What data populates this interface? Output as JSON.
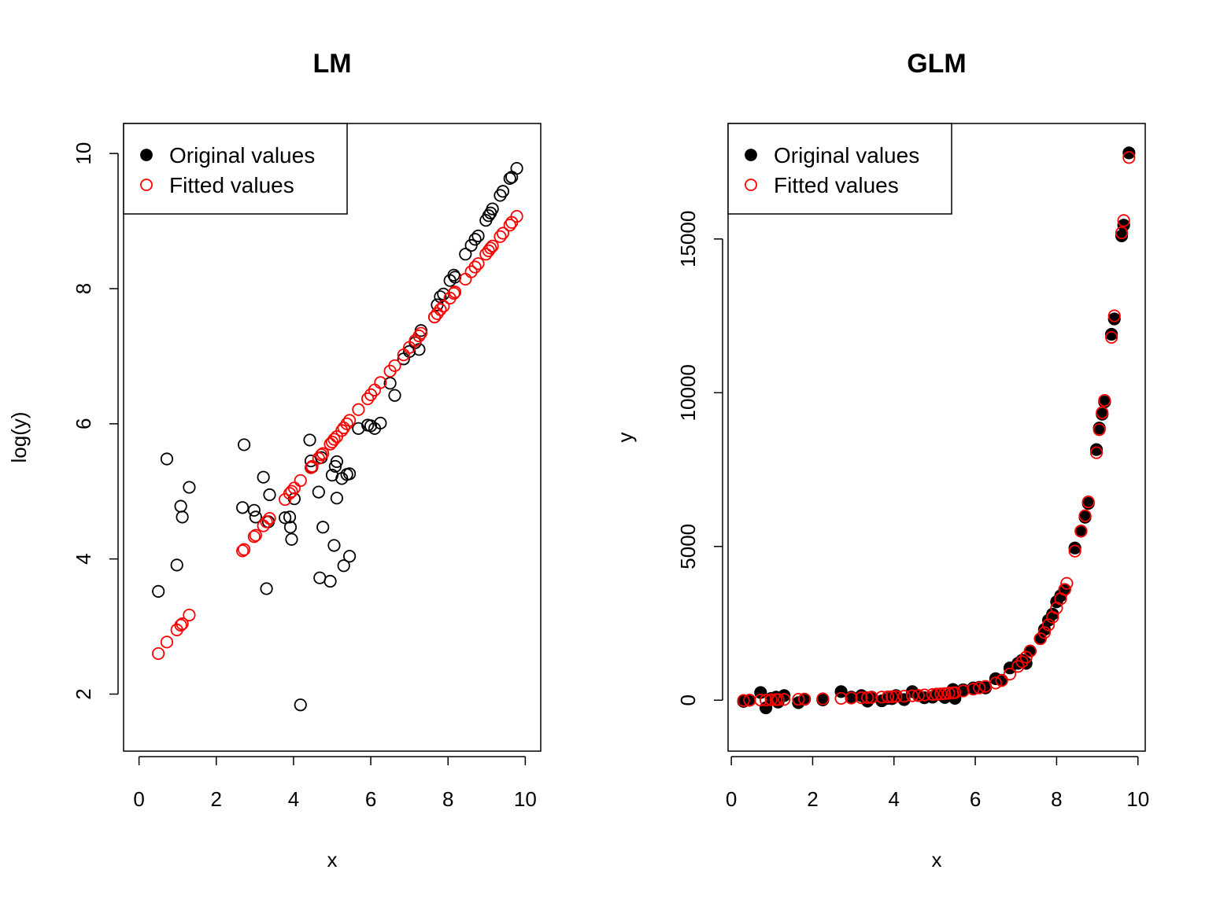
{
  "colors": {
    "original": "#000000",
    "fitted": "#ff0000"
  },
  "chart_data": [
    {
      "type": "scatter",
      "title": "LM",
      "xlabel": "x",
      "ylabel": "log(y)",
      "xlim": [
        0,
        10
      ],
      "ylim": [
        1.5,
        10.1
      ],
      "xticks": [
        0,
        2,
        4,
        6,
        8,
        10
      ],
      "yticks": [
        2,
        4,
        6,
        8,
        10
      ],
      "legend_position": "top-left",
      "series": [
        {
          "name": "Original values",
          "marker": "open-circle",
          "color": "#000000",
          "points": [
            [
              0.5,
              3.52
            ],
            [
              0.72,
              5.48
            ],
            [
              0.98,
              3.91
            ],
            [
              1.08,
              4.78
            ],
            [
              1.12,
              4.62
            ],
            [
              1.3,
              5.06
            ],
            [
              2.68,
              4.76
            ],
            [
              2.72,
              5.69
            ],
            [
              2.98,
              4.72
            ],
            [
              3.02,
              4.62
            ],
            [
              3.22,
              5.21
            ],
            [
              3.3,
              3.56
            ],
            [
              3.38,
              4.95
            ],
            [
              3.35,
              4.55
            ],
            [
              3.78,
              4.61
            ],
            [
              3.9,
              4.62
            ],
            [
              3.92,
              4.47
            ],
            [
              3.95,
              4.29
            ],
            [
              4.02,
              4.89
            ],
            [
              4.18,
              1.84
            ],
            [
              4.42,
              5.76
            ],
            [
              4.45,
              5.45
            ],
            [
              4.48,
              5.36
            ],
            [
              4.65,
              4.99
            ],
            [
              4.68,
              3.72
            ],
            [
              4.72,
              5.5
            ],
            [
              4.76,
              4.47
            ],
            [
              4.95,
              3.67
            ],
            [
              5.0,
              5.24
            ],
            [
              5.05,
              4.2
            ],
            [
              5.08,
              5.37
            ],
            [
              5.12,
              5.44
            ],
            [
              5.12,
              4.9
            ],
            [
              5.25,
              5.19
            ],
            [
              5.3,
              3.9
            ],
            [
              5.38,
              5.25
            ],
            [
              5.45,
              5.26
            ],
            [
              5.45,
              4.04
            ],
            [
              5.68,
              5.93
            ],
            [
              5.92,
              5.98
            ],
            [
              6.0,
              5.97
            ],
            [
              6.1,
              5.93
            ],
            [
              6.25,
              6.01
            ],
            [
              6.5,
              6.6
            ],
            [
              6.62,
              6.42
            ],
            [
              6.85,
              6.96
            ],
            [
              7.0,
              7.07
            ],
            [
              7.15,
              7.2
            ],
            [
              7.25,
              7.1
            ],
            [
              7.3,
              7.38
            ],
            [
              7.65,
              7.58
            ],
            [
              7.72,
              7.76
            ],
            [
              7.8,
              7.88
            ],
            [
              7.88,
              7.92
            ],
            [
              8.05,
              8.12
            ],
            [
              8.15,
              8.2
            ],
            [
              8.18,
              8.17
            ],
            [
              8.45,
              8.51
            ],
            [
              8.6,
              8.64
            ],
            [
              8.7,
              8.73
            ],
            [
              8.78,
              8.78
            ],
            [
              8.98,
              9.01
            ],
            [
              9.05,
              9.08
            ],
            [
              9.1,
              9.12
            ],
            [
              9.15,
              9.18
            ],
            [
              9.35,
              9.38
            ],
            [
              9.42,
              9.44
            ],
            [
              9.6,
              9.63
            ],
            [
              9.65,
              9.65
            ],
            [
              9.78,
              9.78
            ]
          ]
        },
        {
          "name": "Fitted values",
          "marker": "open-circle",
          "color": "#ff0000",
          "points": [
            [
              0.5,
              2.6
            ],
            [
              0.72,
              2.77
            ],
            [
              0.98,
              2.95
            ],
            [
              1.08,
              3.02
            ],
            [
              1.12,
              3.04
            ],
            [
              1.3,
              3.17
            ],
            [
              2.68,
              4.12
            ],
            [
              2.72,
              4.14
            ],
            [
              2.98,
              4.33
            ],
            [
              3.02,
              4.35
            ],
            [
              3.22,
              4.49
            ],
            [
              3.3,
              4.55
            ],
            [
              3.38,
              4.6
            ],
            [
              3.78,
              4.88
            ],
            [
              3.9,
              4.97
            ],
            [
              3.95,
              5.0
            ],
            [
              4.02,
              5.05
            ],
            [
              4.18,
              5.16
            ],
            [
              4.45,
              5.35
            ],
            [
              4.48,
              5.37
            ],
            [
              4.65,
              5.49
            ],
            [
              4.72,
              5.54
            ],
            [
              4.76,
              5.56
            ],
            [
              4.95,
              5.7
            ],
            [
              5.0,
              5.73
            ],
            [
              5.05,
              5.77
            ],
            [
              5.12,
              5.81
            ],
            [
              5.25,
              5.9
            ],
            [
              5.3,
              5.94
            ],
            [
              5.38,
              6.0
            ],
            [
              5.45,
              6.05
            ],
            [
              5.68,
              6.21
            ],
            [
              5.92,
              6.37
            ],
            [
              6.0,
              6.43
            ],
            [
              6.1,
              6.5
            ],
            [
              6.25,
              6.61
            ],
            [
              6.5,
              6.78
            ],
            [
              6.62,
              6.86
            ],
            [
              6.85,
              7.02
            ],
            [
              7.0,
              7.13
            ],
            [
              7.15,
              7.23
            ],
            [
              7.25,
              7.3
            ],
            [
              7.3,
              7.34
            ],
            [
              7.65,
              7.58
            ],
            [
              7.72,
              7.63
            ],
            [
              7.8,
              7.69
            ],
            [
              7.88,
              7.74
            ],
            [
              8.05,
              7.86
            ],
            [
              8.15,
              7.93
            ],
            [
              8.18,
              7.95
            ],
            [
              8.45,
              8.14
            ],
            [
              8.6,
              8.25
            ],
            [
              8.7,
              8.32
            ],
            [
              8.78,
              8.37
            ],
            [
              8.98,
              8.51
            ],
            [
              9.05,
              8.56
            ],
            [
              9.1,
              8.6
            ],
            [
              9.15,
              8.63
            ],
            [
              9.35,
              8.77
            ],
            [
              9.42,
              8.82
            ],
            [
              9.6,
              8.94
            ],
            [
              9.65,
              8.98
            ],
            [
              9.78,
              9.07
            ]
          ]
        }
      ]
    },
    {
      "type": "scatter",
      "title": "GLM",
      "xlabel": "x",
      "ylabel": "y",
      "xlim": [
        0.3,
        9.8
      ],
      "ylim": [
        -900,
        18000
      ],
      "xticks": [
        0,
        2,
        4,
        6,
        8,
        10
      ],
      "yticks": [
        0,
        5000,
        10000,
        15000
      ],
      "legend_position": "top-left",
      "series": [
        {
          "name": "Original values",
          "marker": "filled-circle",
          "color": "#000000",
          "points": [
            [
              0.3,
              -40
            ],
            [
              0.45,
              0
            ],
            [
              0.72,
              250
            ],
            [
              0.85,
              -250
            ],
            [
              0.98,
              60
            ],
            [
              1.1,
              100
            ],
            [
              1.15,
              -60
            ],
            [
              1.3,
              150
            ],
            [
              1.65,
              -80
            ],
            [
              1.8,
              30
            ],
            [
              2.25,
              10
            ],
            [
              2.7,
              280
            ],
            [
              2.95,
              100
            ],
            [
              3.2,
              150
            ],
            [
              3.35,
              -30
            ],
            [
              3.45,
              100
            ],
            [
              3.7,
              -20
            ],
            [
              3.85,
              60
            ],
            [
              3.95,
              50
            ],
            [
              4.05,
              150
            ],
            [
              4.25,
              20
            ],
            [
              4.45,
              280
            ],
            [
              4.6,
              150
            ],
            [
              4.75,
              80
            ],
            [
              4.95,
              100
            ],
            [
              5.05,
              200
            ],
            [
              5.15,
              180
            ],
            [
              5.25,
              90
            ],
            [
              5.35,
              160
            ],
            [
              5.45,
              350
            ],
            [
              5.5,
              60
            ],
            [
              5.7,
              340
            ],
            [
              5.95,
              400
            ],
            [
              6.1,
              420
            ],
            [
              6.25,
              400
            ],
            [
              6.5,
              700
            ],
            [
              6.65,
              650
            ],
            [
              6.85,
              1050
            ],
            [
              7.05,
              1200
            ],
            [
              7.15,
              1300
            ],
            [
              7.25,
              1200
            ],
            [
              7.35,
              1600
            ],
            [
              7.6,
              2000
            ],
            [
              7.7,
              2300
            ],
            [
              7.8,
              2600
            ],
            [
              7.9,
              2800
            ],
            [
              8.0,
              3200
            ],
            [
              8.1,
              3400
            ],
            [
              8.2,
              3600
            ],
            [
              8.45,
              4950
            ],
            [
              8.6,
              5500
            ],
            [
              8.7,
              5950
            ],
            [
              8.78,
              6400
            ],
            [
              8.98,
              8150
            ],
            [
              9.05,
              8850
            ],
            [
              9.12,
              9300
            ],
            [
              9.18,
              9700
            ],
            [
              9.35,
              11900
            ],
            [
              9.42,
              12400
            ],
            [
              9.6,
              15100
            ],
            [
              9.65,
              15450
            ],
            [
              9.78,
              17800
            ]
          ]
        },
        {
          "name": "Fitted values",
          "marker": "open-circle",
          "color": "#ff0000",
          "points": [
            [
              0.3,
              -10
            ],
            [
              0.45,
              0
            ],
            [
              0.72,
              5
            ],
            [
              0.85,
              5
            ],
            [
              0.98,
              15
            ],
            [
              1.1,
              20
            ],
            [
              1.15,
              20
            ],
            [
              1.3,
              25
            ],
            [
              1.65,
              30
            ],
            [
              1.8,
              35
            ],
            [
              2.25,
              45
            ],
            [
              2.7,
              60
            ],
            [
              2.95,
              70
            ],
            [
              3.2,
              80
            ],
            [
              3.35,
              85
            ],
            [
              3.45,
              90
            ],
            [
              3.7,
              100
            ],
            [
              3.85,
              110
            ],
            [
              3.95,
              115
            ],
            [
              4.05,
              120
            ],
            [
              4.25,
              130
            ],
            [
              4.45,
              145
            ],
            [
              4.6,
              155
            ],
            [
              4.75,
              170
            ],
            [
              4.95,
              185
            ],
            [
              5.05,
              195
            ],
            [
              5.15,
              205
            ],
            [
              5.25,
              215
            ],
            [
              5.35,
              230
            ],
            [
              5.45,
              240
            ],
            [
              5.5,
              245
            ],
            [
              5.7,
              300
            ],
            [
              5.95,
              360
            ],
            [
              6.1,
              400
            ],
            [
              6.25,
              450
            ],
            [
              6.5,
              560
            ],
            [
              6.65,
              640
            ],
            [
              6.85,
              850
            ],
            [
              7.05,
              1100
            ],
            [
              7.15,
              1250
            ],
            [
              7.25,
              1400
            ],
            [
              7.35,
              1600
            ],
            [
              7.6,
              2000
            ],
            [
              7.7,
              2200
            ],
            [
              7.8,
              2450
            ],
            [
              7.9,
              2700
            ],
            [
              8.0,
              3000
            ],
            [
              8.1,
              3300
            ],
            [
              8.2,
              3600
            ],
            [
              8.25,
              3800
            ],
            [
              8.45,
              4850
            ],
            [
              8.6,
              5500
            ],
            [
              8.7,
              6000
            ],
            [
              8.78,
              6450
            ],
            [
              8.98,
              8050
            ],
            [
              9.05,
              8800
            ],
            [
              9.12,
              9350
            ],
            [
              9.18,
              9750
            ],
            [
              9.35,
              11800
            ],
            [
              9.42,
              12500
            ],
            [
              9.6,
              15200
            ],
            [
              9.65,
              15600
            ],
            [
              9.78,
              17650
            ]
          ]
        }
      ]
    }
  ]
}
